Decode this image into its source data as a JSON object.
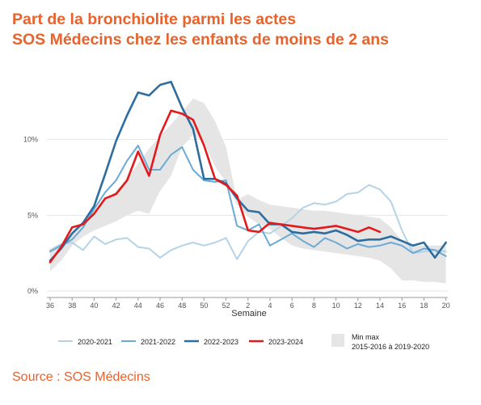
{
  "title_line1": "Part de la bronchiolite parmi les actes",
  "title_line2": "SOS Médecins chez les enfants de moins de 2 ans",
  "source": "Source : SOS Médecins",
  "chart_data": {
    "type": "line",
    "xlabel": "Semaine",
    "ylabel": "",
    "x_ticks": [
      "36",
      "38",
      "40",
      "42",
      "44",
      "46",
      "48",
      "50",
      "52",
      "2",
      "4",
      "6",
      "8",
      "10",
      "12",
      "14",
      "16",
      "18",
      "20"
    ],
    "y_ticks": [
      "0%",
      "5%",
      "10%"
    ],
    "ylim": [
      0,
      14
    ],
    "weeks": [
      "36",
      "37",
      "38",
      "39",
      "40",
      "41",
      "42",
      "43",
      "44",
      "45",
      "46",
      "47",
      "48",
      "49",
      "50",
      "51",
      "52",
      "1",
      "2",
      "3",
      "4",
      "5",
      "6",
      "7",
      "8",
      "9",
      "10",
      "11",
      "12",
      "13",
      "14",
      "15",
      "16",
      "17",
      "18",
      "19",
      "20"
    ],
    "band": {
      "name": "Min max 2015-2016 à 2019-2020",
      "color": "#e5e5e5",
      "min": [
        1.3,
        2.0,
        3.0,
        3.6,
        4.0,
        4.3,
        4.6,
        5.0,
        5.3,
        5.1,
        6.6,
        7.6,
        9.5,
        10.3,
        9.8,
        8.2,
        7.2,
        5.7,
        4.9,
        4.4,
        4.1,
        3.5,
        3.0,
        2.8,
        2.7,
        2.6,
        2.5,
        2.4,
        2.3,
        2.2,
        2.0,
        1.5,
        0.7,
        0.7,
        0.6,
        0.6,
        0.5
      ],
      "max": [
        2.6,
        3.0,
        3.8,
        4.5,
        5.2,
        6.0,
        6.6,
        7.4,
        8.4,
        9.4,
        10.2,
        11.0,
        11.8,
        12.7,
        12.4,
        11.2,
        9.5,
        6.0,
        6.4,
        6.0,
        5.7,
        5.6,
        5.5,
        5.4,
        5.3,
        5.3,
        5.2,
        5.1,
        5.0,
        4.9,
        4.8,
        4.2,
        3.3,
        3.0,
        3.0,
        3.0,
        3.0
      ]
    },
    "series": [
      {
        "name": "2020-2021",
        "color": "#b5d3e7",
        "width": 2,
        "values": [
          2.7,
          3.1,
          3.2,
          2.7,
          3.6,
          3.1,
          3.4,
          3.5,
          2.9,
          2.8,
          2.2,
          2.7,
          3.0,
          3.2,
          3.0,
          3.2,
          3.5,
          2.1,
          3.3,
          3.9,
          3.8,
          4.3,
          4.8,
          5.5,
          5.8,
          5.7,
          5.9,
          6.4,
          6.5,
          7.0,
          6.7,
          5.9,
          4.0,
          2.5,
          2.6,
          2.7,
          2.6
        ]
      },
      {
        "name": "2021-2022",
        "color": "#6aaad4",
        "width": 2,
        "values": [
          2.6,
          3.0,
          3.4,
          4.2,
          5.4,
          6.5,
          7.3,
          8.6,
          9.6,
          8.0,
          8.0,
          9.0,
          9.5,
          8.0,
          7.3,
          7.2,
          7.3,
          4.3,
          4.0,
          4.4,
          3.0,
          3.4,
          3.8,
          3.3,
          2.9,
          3.5,
          3.2,
          2.8,
          3.1,
          2.9,
          3.0,
          3.2,
          3.0,
          2.5,
          2.8,
          2.7,
          2.3
        ]
      },
      {
        "name": "2022-2023",
        "color": "#2d6d9f",
        "width": 2.6,
        "values": [
          2.0,
          2.8,
          3.8,
          4.5,
          5.6,
          7.7,
          9.9,
          11.6,
          13.1,
          12.9,
          13.6,
          13.8,
          12.1,
          10.7,
          7.4,
          7.4,
          7.1,
          6.1,
          5.3,
          5.2,
          4.4,
          4.4,
          3.9,
          3.8,
          3.9,
          3.8,
          4.0,
          3.7,
          3.3,
          3.4,
          3.4,
          3.6,
          3.3,
          3.0,
          3.2,
          2.2,
          3.2
        ]
      },
      {
        "name": "2023-2024",
        "color": "#e31a1c",
        "width": 2.6,
        "values": [
          1.9,
          2.9,
          4.2,
          4.4,
          5.1,
          6.1,
          6.4,
          7.3,
          9.2,
          7.6,
          10.3,
          11.9,
          11.7,
          11.3,
          9.6,
          7.4,
          7.0,
          6.3,
          4.0,
          3.9,
          4.5,
          4.4,
          4.3,
          4.2,
          4.1,
          4.2,
          4.3,
          4.1,
          3.9,
          4.2,
          3.9,
          null,
          null,
          null,
          null,
          null,
          null
        ]
      }
    ]
  }
}
